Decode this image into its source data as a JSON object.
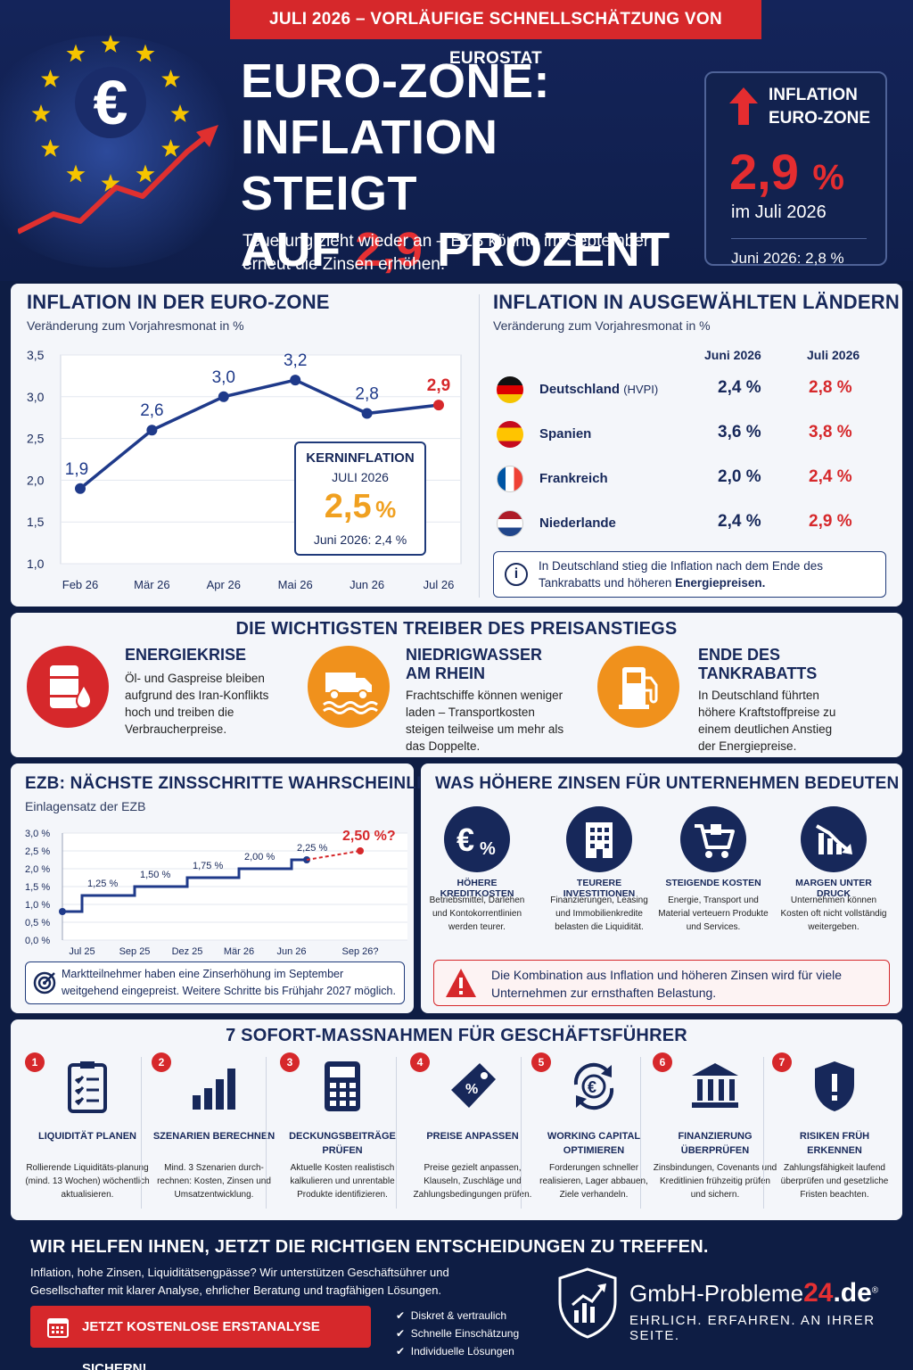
{
  "header": {
    "topbar": "JULI 2026 – VORLÄUFIGE SCHNELLSCHÄTZUNG VON EUROSTAT",
    "title_line1": "EURO-ZONE:",
    "title_line2": "INFLATION STEIGT",
    "title_line3_pre": "AUF ",
    "title_line3_red": "2,9",
    "title_line3_post": " PROZENT",
    "subtitle": "Teuerung zieht wieder an – EZB könnte im September erneut die Zinsen erhöhen.",
    "euro_symbol": "€",
    "highlight": {
      "label1": "INFLATION",
      "label2": "EURO-ZONE",
      "value": "2,9",
      "unit": "%",
      "month": "im Juli 2026",
      "previous": "Juni 2026: 2,8 %"
    }
  },
  "euro_chart_panel": {
    "title": "INFLATION IN DER EURO-ZONE",
    "subtitle": "Veränderung zum Vorjahresmonat in %",
    "kern": {
      "title": "KERNINFLATION",
      "month": "JULI 2026",
      "value": "2,5",
      "unit": "%",
      "previous": "Juni 2026: 2,4 %"
    }
  },
  "chart_data": [
    {
      "type": "line",
      "title": "INFLATION IN DER EURO-ZONE",
      "subtitle": "Veränderung zum Vorjahresmonat in %",
      "categories": [
        "Feb 26",
        "Mär 26",
        "Apr 26",
        "Mai 26",
        "Jun 26",
        "Jul 26"
      ],
      "values": [
        1.9,
        2.6,
        3.0,
        3.2,
        2.8,
        2.9
      ],
      "labels": [
        "1,9",
        "2,6",
        "3,0",
        "3,2",
        "2,8",
        "2,9"
      ],
      "yticks": [
        "1,0",
        "1,5",
        "2,0",
        "2,5",
        "3,0",
        "3,5"
      ],
      "ylim": [
        1.0,
        3.5
      ],
      "highlight_color": "#d6282b",
      "line_color": "#1f3a8a"
    },
    {
      "type": "line",
      "title": "EZB: NÄCHSTE ZINSSCHRITTE WAHRSCHEINLICH",
      "subtitle": "Einlagensatz der EZB",
      "x_labels": [
        "Jul 25",
        "Sep 25",
        "Dez 25",
        "Mär 26",
        "Jun 26",
        "Sep 26?"
      ],
      "steps": [
        0.8,
        1.25,
        1.5,
        1.75,
        2.0,
        2.25
      ],
      "step_labels": [
        "1,25 %",
        "1,50 %",
        "1,75 %",
        "2,00 %",
        "2,25 %"
      ],
      "forecast_value": 2.5,
      "forecast_label": "2,50 %?",
      "yticks": [
        "0,0 %",
        "0,5 %",
        "1,0 %",
        "1,5 %",
        "2,0 %",
        "2,5 %",
        "3,0 %"
      ],
      "ylim": [
        0,
        3.0
      ],
      "line_color": "#1f3a8a",
      "forecast_color": "#d6282b"
    }
  ],
  "countries_panel": {
    "title": "INFLATION IN AUSGEWÄHLTEN LÄNDERN",
    "subtitle": "Veränderung zum Vorjahresmonat in %",
    "col1": "Juni 2026",
    "col2": "Juli 2026",
    "rows": [
      {
        "name": "Deutschland",
        "suffix": "(HVPI)",
        "june": "2,4 %",
        "july": "2,8 %"
      },
      {
        "name": "Spanien",
        "suffix": "",
        "june": "3,6 %",
        "july": "3,8 %"
      },
      {
        "name": "Frankreich",
        "suffix": "",
        "june": "2,0 %",
        "july": "2,4 %"
      },
      {
        "name": "Niederlande",
        "suffix": "",
        "june": "2,4 %",
        "july": "2,9 %"
      }
    ],
    "info_pre": "In Deutschland stieg die Inflation nach dem Ende des Tankrabatts und höheren ",
    "info_bold": "Energiepreisen."
  },
  "drivers": {
    "title": "DIE WICHTIGSTEN TREIBER DES PREISANSTIEGS",
    "items": [
      {
        "title": "ENERGIEKRISE",
        "text": "Öl- und Gaspreise bleiben aufgrund des Iran-Konflikts hoch und treiben die Verbraucherpreise.",
        "color": "#d6282b"
      },
      {
        "title": "NIEDRIGWASSER AM RHEIN",
        "text": "Frachtschiffe können weniger laden – Transportkosten steigen teilweise um mehr als das Doppelte.",
        "color": "#f0911c"
      },
      {
        "title": "ENDE DES TANKRABATTS",
        "text": "In Deutschland führten höhere Kraftstoffpreise zu einem deutlichen Anstieg der Energiepreise.",
        "color": "#f0911c"
      }
    ]
  },
  "ecb_panel": {
    "title": "EZB: NÄCHSTE ZINSSCHRITTE WAHRSCHEINLICH",
    "subtitle": "Einlagensatz der EZB",
    "note": "Marktteilnehmer haben eine Zinserhöhung im September weitgehend eingepreist. Weitere Schritte bis Frühjahr 2027 möglich."
  },
  "business_panel": {
    "title": "WAS HÖHERE ZINSEN FÜR UNTERNEHMEN BEDEUTEN",
    "items": [
      {
        "title": "HÖHERE KREDITKOSTEN",
        "text": "Betriebsmittel, Darlehen und Kontokorrentlinien werden teurer.",
        "icon": "euro-percent-icon"
      },
      {
        "title": "TEURERE INVESTITIONEN",
        "text": "Finanzierungen, Leasing und Immobilienkredite belasten die Liquidität.",
        "icon": "building-icon"
      },
      {
        "title": "STEIGENDE KOSTEN",
        "text": "Energie, Transport und Material verteuern Produkte und Services.",
        "icon": "cart-icon"
      },
      {
        "title": "MARGEN UNTER DRUCK",
        "text": "Unternehmen können Kosten oft nicht vollständig weitergeben.",
        "icon": "declining-chart-icon"
      }
    ],
    "warning": "Die Kombination aus Inflation und höheren Zinsen wird für viele Unternehmen zur ernsthaften Belastung."
  },
  "measures": {
    "title": "7 SOFORT-MASSNAHMEN FÜR GESCHÄFTSFÜHRER",
    "items": [
      {
        "num": "1",
        "title": "LIQUIDITÄT PLANEN",
        "text": "Rollierende Liquiditäts-planung (mind. 13 Wochen) wöchentlich aktualisieren."
      },
      {
        "num": "2",
        "title": "SZENARIEN BERECHNEN",
        "text": "Mind. 3 Szenarien durch-rechnen: Kosten, Zinsen und Umsatzentwicklung."
      },
      {
        "num": "3",
        "title": "DECKUNGSBEITRÄGE PRÜFEN",
        "text": "Aktuelle Kosten realistisch kalkulieren und unrentable Produkte identifizieren."
      },
      {
        "num": "4",
        "title": "PREISE ANPASSEN",
        "text": "Preise gezielt anpassen, Klauseln, Zuschläge und Zahlungsbedingungen prüfen."
      },
      {
        "num": "5",
        "title": "WORKING CAPITAL OPTIMIEREN",
        "text": "Forderungen schneller realisieren, Lager abbauen, Ziele verhandeln."
      },
      {
        "num": "6",
        "title": "FINANZIERUNG ÜBERPRÜFEN",
        "text": "Zinsbindungen, Covenants und Kreditlinien frühzeitig prüfen und sichern."
      },
      {
        "num": "7",
        "title": "RISIKEN FRÜH ERKENNEN",
        "text": "Zahlungsfähigkeit laufend überprüfen und gesetzliche Fristen beachten."
      }
    ]
  },
  "footer": {
    "title": "WIR HELFEN IHNEN, JETZT DIE RICHTIGEN ENTSCHEIDUNGEN ZU TREFFEN.",
    "text": "Inflation, hohe Zinsen, Liquiditätsengpässe? Wir unterstützen Geschäftsührer und Gesellschafter mit klarer Analyse, ehrlicher Beratung und tragfähigen Lösungen.",
    "cta": "JETZT KOSTENLOSE ERSTANALYSE SICHERN!",
    "checks": [
      "Diskret & vertraulich",
      "Schnelle Einschätzung",
      "Individuelle Lösungen"
    ],
    "brand_name": "GmbH-Probleme",
    "brand_num": "24",
    "brand_tld": ".de",
    "brand_reg": "®",
    "tagline": "EHRLICH. ERFAHREN. AN IHRER SEITE."
  }
}
